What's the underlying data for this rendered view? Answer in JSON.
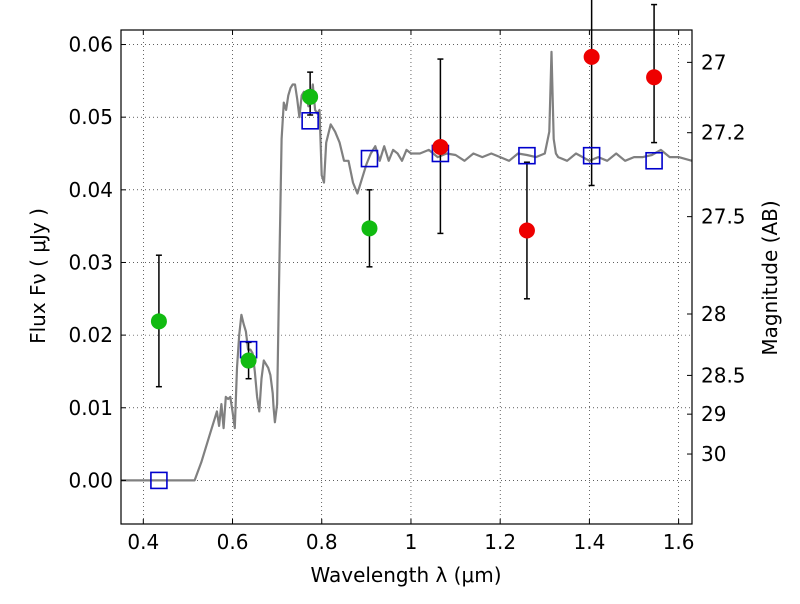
{
  "chart_data": {
    "type": "scatter",
    "xlabel": "Wavelength  λ (μm)",
    "ylabel": "Flux  Fν  ( μJy )",
    "y2label": "Magnitude (AB)",
    "xlim": [
      0.35,
      1.63
    ],
    "ylim": [
      -0.006,
      0.062
    ],
    "xticks": [
      0.4,
      0.6,
      0.8,
      1.0,
      1.2,
      1.4,
      1.6
    ],
    "xtick_labels": [
      "0.4",
      "0.6",
      "0.8",
      "1",
      "1.2",
      "1.4",
      "1.6"
    ],
    "yticks": [
      0.0,
      0.01,
      0.02,
      0.03,
      0.04,
      0.05,
      0.06
    ],
    "ytick_labels": [
      "0.00",
      "0.01",
      "0.02",
      "0.03",
      "0.04",
      "0.05",
      "0.06"
    ],
    "mag_ticks": [
      "27",
      "27.2",
      "27.5",
      "28",
      "28.5",
      "29",
      "30"
    ],
    "grid": true,
    "colors": {
      "model": "#808080",
      "model_fluxes": "#0000cc",
      "green_points": "#11bb11",
      "red_points": "#ee0000",
      "errorbar": "#000000"
    },
    "model_spectrum": {
      "x": [
        0.35,
        0.4,
        0.45,
        0.5,
        0.515,
        0.53,
        0.55,
        0.56,
        0.565,
        0.57,
        0.575,
        0.58,
        0.585,
        0.59,
        0.595,
        0.6,
        0.605,
        0.61,
        0.615,
        0.62,
        0.625,
        0.63,
        0.635,
        0.64,
        0.645,
        0.65,
        0.655,
        0.66,
        0.665,
        0.67,
        0.675,
        0.68,
        0.685,
        0.69,
        0.692,
        0.695,
        0.7,
        0.705,
        0.71,
        0.715,
        0.72,
        0.725,
        0.73,
        0.735,
        0.74,
        0.745,
        0.75,
        0.755,
        0.76,
        0.765,
        0.77,
        0.775,
        0.78,
        0.785,
        0.79,
        0.795,
        0.8,
        0.805,
        0.81,
        0.82,
        0.83,
        0.84,
        0.85,
        0.86,
        0.87,
        0.88,
        0.89,
        0.9,
        0.91,
        0.92,
        0.93,
        0.94,
        0.95,
        0.96,
        0.97,
        0.98,
        0.99,
        1.0,
        1.02,
        1.04,
        1.06,
        1.08,
        1.1,
        1.12,
        1.14,
        1.16,
        1.18,
        1.2,
        1.22,
        1.24,
        1.26,
        1.28,
        1.3,
        1.31,
        1.315,
        1.32,
        1.325,
        1.33,
        1.35,
        1.37,
        1.4,
        1.42,
        1.44,
        1.46,
        1.48,
        1.5,
        1.52,
        1.54,
        1.56,
        1.58,
        1.6,
        1.63
      ],
      "y": [
        0.0,
        0.0,
        0.0,
        0.0,
        0.0,
        0.0025,
        0.0065,
        0.0085,
        0.0095,
        0.0075,
        0.0105,
        0.0072,
        0.0115,
        0.0112,
        0.0115,
        0.0095,
        0.0072,
        0.0155,
        0.02,
        0.0228,
        0.0215,
        0.0205,
        0.018,
        0.018,
        0.0175,
        0.015,
        0.0115,
        0.0095,
        0.014,
        0.0165,
        0.016,
        0.0155,
        0.0145,
        0.012,
        0.01,
        0.008,
        0.0105,
        0.03,
        0.047,
        0.052,
        0.051,
        0.053,
        0.054,
        0.0545,
        0.0545,
        0.0525,
        0.05,
        0.053,
        0.0535,
        0.053,
        0.0515,
        0.052,
        0.0545,
        0.051,
        0.0505,
        0.051,
        0.042,
        0.041,
        0.0465,
        0.049,
        0.048,
        0.0465,
        0.044,
        0.044,
        0.041,
        0.0395,
        0.0415,
        0.0435,
        0.045,
        0.046,
        0.044,
        0.046,
        0.044,
        0.0455,
        0.045,
        0.044,
        0.0455,
        0.045,
        0.045,
        0.0455,
        0.0445,
        0.045,
        0.0448,
        0.044,
        0.045,
        0.0445,
        0.045,
        0.0445,
        0.044,
        0.045,
        0.0448,
        0.0445,
        0.045,
        0.048,
        0.059,
        0.047,
        0.045,
        0.0445,
        0.044,
        0.045,
        0.044,
        0.0445,
        0.044,
        0.045,
        0.044,
        0.0445,
        0.0445,
        0.0448,
        0.0455,
        0.0445,
        0.0445,
        0.044
      ]
    },
    "model_fluxes": {
      "x": [
        0.435,
        0.636,
        0.774,
        0.907,
        1.066,
        1.26,
        1.405,
        1.545
      ],
      "y": [
        0.0,
        0.018,
        0.0495,
        0.0443,
        0.045,
        0.0447,
        0.0447,
        0.044
      ]
    },
    "observed_optical": {
      "x": [
        0.435,
        0.636,
        0.774,
        0.907
      ],
      "y": [
        0.0219,
        0.0165,
        0.0528,
        0.0347
      ],
      "err_lo": [
        0.009,
        0.0025,
        0.0025,
        0.0053
      ],
      "err_hi": [
        0.0091,
        0.0025,
        0.0034,
        0.0053
      ]
    },
    "observed_nir": {
      "x": [
        1.066,
        1.26,
        1.405,
        1.545
      ],
      "y": [
        0.0459,
        0.0344,
        0.0583,
        0.0555
      ],
      "err_lo": [
        0.0119,
        0.0094,
        0.0177,
        0.009
      ],
      "err_hi": [
        0.0121,
        0.0094,
        0.01,
        0.01
      ]
    }
  }
}
